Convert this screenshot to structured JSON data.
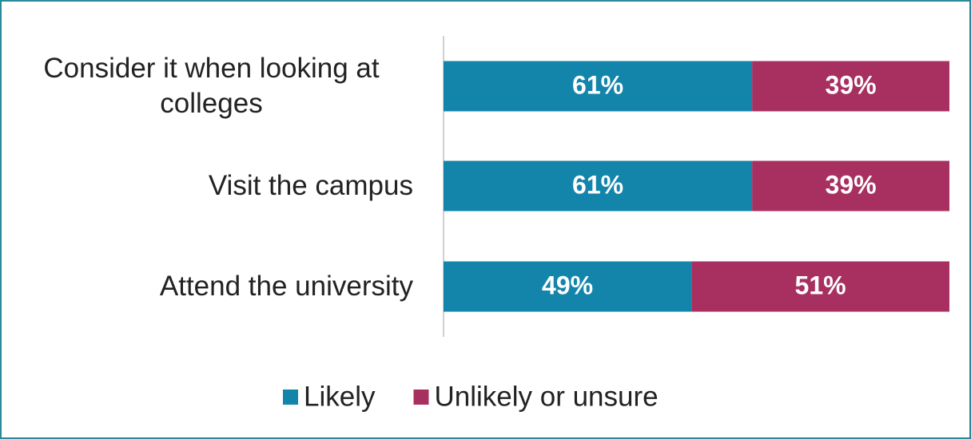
{
  "chart_data": {
    "type": "stacked_bar_horizontal",
    "categories": [
      "Consider it when looking at colleges",
      "Visit the campus",
      "Attend the university"
    ],
    "series": [
      {
        "name": "Likely",
        "color": "#1385aa",
        "values": [
          61,
          61,
          49
        ],
        "value_labels": [
          "61%",
          "61%",
          "49%"
        ]
      },
      {
        "name": "Unlikely or unsure",
        "color": "#a73060",
        "values": [
          39,
          39,
          51
        ],
        "value_labels": [
          "39%",
          "39%",
          "51%"
        ]
      }
    ],
    "xlim": [
      0,
      100
    ],
    "legend": "bottom"
  }
}
